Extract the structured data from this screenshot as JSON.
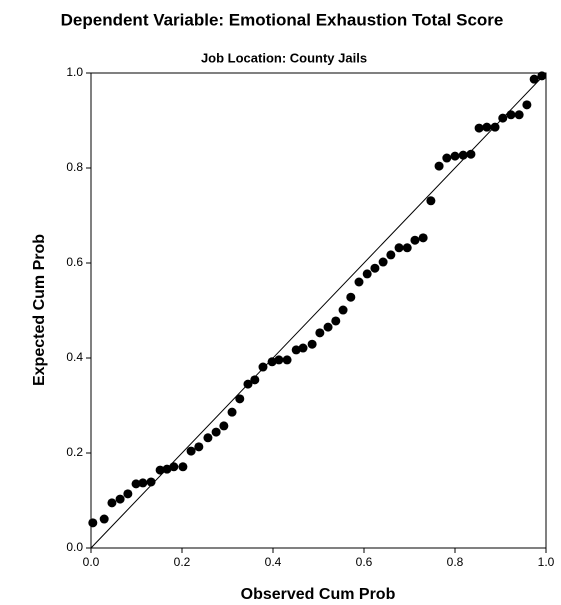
{
  "chart_data": {
    "type": "scatter",
    "title": "Dependent Variable: Emotional Exhaustion Total  Score",
    "subtitle": "Job Location: County Jails",
    "x_label": "Observed Cum Prob",
    "y_label": "Expected Cum Prob",
    "xlim": [
      0,
      1
    ],
    "ylim": [
      0,
      1
    ],
    "xticks": [
      {
        "value": 0,
        "label": "0.0"
      },
      0.2,
      0.4,
      0.6,
      0.8,
      {
        "value": 1,
        "label": "1.0"
      }
    ],
    "yticks": [
      {
        "value": 0,
        "label": "0.0"
      },
      0.2,
      0.4,
      0.6,
      0.8,
      {
        "value": 1,
        "label": "1.0"
      }
    ],
    "grid": false,
    "color": "#000000",
    "x": [
      0.004,
      0.029,
      0.046,
      0.064,
      0.081,
      0.099,
      0.114,
      0.132,
      0.152,
      0.167,
      0.182,
      0.202,
      0.22,
      0.237,
      0.257,
      0.275,
      0.292,
      0.31,
      0.327,
      0.345,
      0.36,
      0.378,
      0.398,
      0.413,
      0.431,
      0.451,
      0.466,
      0.486,
      0.503,
      0.521,
      0.538,
      0.554,
      0.571,
      0.589,
      0.607,
      0.624,
      0.642,
      0.659,
      0.677,
      0.695,
      0.712,
      0.73,
      0.747,
      0.765,
      0.782,
      0.8,
      0.818,
      0.835,
      0.853,
      0.87,
      0.888,
      0.905,
      0.923,
      0.941,
      0.958,
      0.974,
      0.991
    ],
    "values": [
      0.053,
      0.061,
      0.095,
      0.103,
      0.114,
      0.135,
      0.137,
      0.139,
      0.164,
      0.166,
      0.171,
      0.171,
      0.204,
      0.213,
      0.232,
      0.244,
      0.257,
      0.286,
      0.314,
      0.345,
      0.354,
      0.381,
      0.392,
      0.396,
      0.396,
      0.417,
      0.421,
      0.429,
      0.453,
      0.465,
      0.478,
      0.501,
      0.528,
      0.56,
      0.577,
      0.589,
      0.602,
      0.617,
      0.632,
      0.632,
      0.648,
      0.653,
      0.731,
      0.804,
      0.821,
      0.825,
      0.827,
      0.829,
      0.884,
      0.886,
      0.886,
      0.905,
      0.912,
      0.912,
      0.933,
      0.987,
      0.994
    ]
  }
}
